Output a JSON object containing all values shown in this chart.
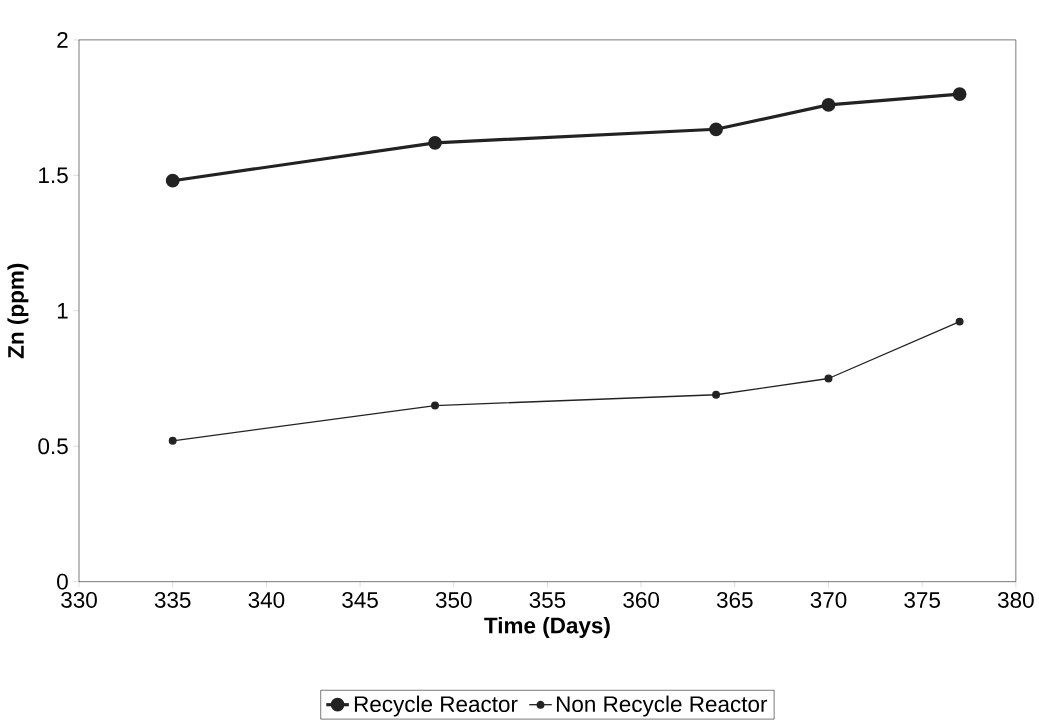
{
  "chart_data": {
    "type": "line",
    "xlabel": "Time (Days)",
    "ylabel": "Zn (ppm)",
    "x": [
      335,
      349,
      364,
      370,
      377
    ],
    "series": [
      {
        "name": "Recycle Reactor",
        "color": "#222222",
        "values": [
          1.48,
          1.62,
          1.67,
          1.76,
          1.8
        ]
      },
      {
        "name": "Non Recycle Reactor",
        "color": "#222222",
        "values": [
          0.52,
          0.65,
          0.69,
          0.75,
          0.96
        ]
      }
    ],
    "xlim": [
      330,
      380
    ],
    "xticks": [
      330,
      335,
      340,
      345,
      350,
      355,
      360,
      365,
      370,
      375,
      380
    ],
    "ylim": [
      0,
      2
    ],
    "yticks": [
      0,
      0.5,
      1,
      1.5,
      2
    ],
    "grid": false,
    "legend": "bottom",
    "marker": "circle",
    "line_style": "solid"
  }
}
